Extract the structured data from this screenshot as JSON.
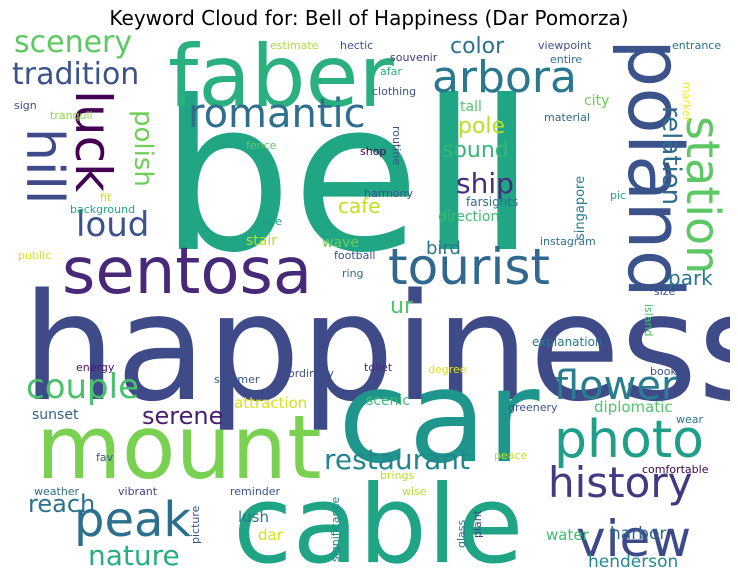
{
  "title": "Keyword Cloud for: Bell of Happiness (Dar Pomorza)",
  "words": [
    {
      "text": "bell",
      "color": "#21a685"
    },
    {
      "text": "happiness",
      "color": "#3f4a89"
    },
    {
      "text": "car",
      "color": "#1f968b"
    },
    {
      "text": "cable",
      "color": "#20a486"
    },
    {
      "text": "mount",
      "color": "#7ad151"
    },
    {
      "text": "faber",
      "color": "#2ab07f"
    },
    {
      "text": "poland",
      "color": "#3b528b"
    },
    {
      "text": "sentosa",
      "color": "#482878"
    },
    {
      "text": "tourist",
      "color": "#31688e"
    },
    {
      "text": "arbora",
      "color": "#2a788e"
    },
    {
      "text": "romantic",
      "color": "#2e6f8e"
    },
    {
      "text": "luck",
      "color": "#440154"
    },
    {
      "text": "hill",
      "color": "#3e4a89"
    },
    {
      "text": "station",
      "color": "#5cc863"
    },
    {
      "text": "photo",
      "color": "#1f9e89"
    },
    {
      "text": "view",
      "color": "#3e4989"
    },
    {
      "text": "peak",
      "color": "#2d708e"
    },
    {
      "text": "history",
      "color": "#443a83"
    },
    {
      "text": "flower",
      "color": "#287d8e"
    },
    {
      "text": "couple",
      "color": "#4ac16d"
    },
    {
      "text": "restaurant",
      "color": "#25858e"
    },
    {
      "text": "loud",
      "color": "#3b528b"
    },
    {
      "text": "scenery",
      "color": "#5ec962"
    },
    {
      "text": "tradition",
      "color": "#3b528b"
    },
    {
      "text": "nature",
      "color": "#29af7f"
    },
    {
      "text": "reach",
      "color": "#2c728e"
    },
    {
      "text": "ship",
      "color": "#472d7b"
    },
    {
      "text": "polish",
      "color": "#6ece58"
    },
    {
      "text": "relation",
      "color": "#2f6b8e"
    },
    {
      "text": "serene",
      "color": "#481f70"
    },
    {
      "text": "color",
      "color": "#2c728e"
    },
    {
      "text": "sound",
      "color": "#35b779"
    },
    {
      "text": "pole",
      "color": "#bddf26"
    },
    {
      "text": "cafe",
      "color": "#c2df23"
    },
    {
      "text": "bird",
      "color": "#2a788e"
    },
    {
      "text": "park",
      "color": "#2a768e"
    },
    {
      "text": "ur",
      "color": "#50c46a"
    },
    {
      "text": "henderson",
      "color": "#23898e"
    },
    {
      "text": "harbor",
      "color": "#31678e"
    },
    {
      "text": "diplomatic",
      "color": "#50c46a"
    },
    {
      "text": "water",
      "color": "#3fbc73"
    },
    {
      "text": "lush",
      "color": "#2a768e"
    },
    {
      "text": "dar",
      "color": "#d2e21b"
    },
    {
      "text": "scenic",
      "color": "#3fbc73"
    },
    {
      "text": "attraction",
      "color": "#d8e219"
    },
    {
      "text": "sunset",
      "color": "#33638d"
    },
    {
      "text": "direction",
      "color": "#3dbc74"
    },
    {
      "text": "city",
      "color": "#6ccd5a"
    },
    {
      "text": "tall",
      "color": "#56c667"
    },
    {
      "text": "wave",
      "color": "#6ccd5a"
    },
    {
      "text": "stair",
      "color": "#b5de2b"
    },
    {
      "text": "singapore",
      "color": "#287c8e"
    },
    {
      "text": "farsights",
      "color": "#2f6c8e"
    },
    {
      "text": "harmony",
      "color": "#3b528b"
    },
    {
      "text": "shop",
      "color": "#440154"
    },
    {
      "text": "routine",
      "color": "#3b528b"
    },
    {
      "text": "fence",
      "color": "#5dc863"
    },
    {
      "text": "clothing",
      "color": "#3b528b"
    },
    {
      "text": "afar",
      "color": "#29af7f"
    },
    {
      "text": "souvenir",
      "color": "#453781"
    },
    {
      "text": "hectic",
      "color": "#3b528b"
    },
    {
      "text": "estimate",
      "color": "#aadc32"
    },
    {
      "text": "viewpoint",
      "color": "#3b528b"
    },
    {
      "text": "entire",
      "color": "#2c728e"
    },
    {
      "text": "entrance",
      "color": "#2e6e8e"
    },
    {
      "text": "marker",
      "color": "#fde725"
    },
    {
      "text": "material",
      "color": "#31688e"
    },
    {
      "text": "pic",
      "color": "#20a386"
    },
    {
      "text": "instagram",
      "color": "#2d718e"
    },
    {
      "text": "size",
      "color": "#3e4989"
    },
    {
      "text": "island",
      "color": "#4ac16d"
    },
    {
      "text": "explanation",
      "color": "#2a788e"
    },
    {
      "text": "book",
      "color": "#3b528b"
    },
    {
      "text": "wear",
      "color": "#2c728e"
    },
    {
      "text": "comfortable",
      "color": "#440154"
    },
    {
      "text": "greenery",
      "color": "#3b528b"
    },
    {
      "text": "degree",
      "color": "#dde318"
    },
    {
      "text": "toilet",
      "color": "#472c7a"
    },
    {
      "text": "ordinary",
      "color": "#3b528b"
    },
    {
      "text": "summer",
      "color": "#3b528b"
    },
    {
      "text": "energy",
      "color": "#481467"
    },
    {
      "text": "football",
      "color": "#3b528b"
    },
    {
      "text": "ring",
      "color": "#2e6e8e"
    },
    {
      "text": "eye",
      "color": "#1fa188"
    },
    {
      "text": "background",
      "color": "#20a486"
    },
    {
      "text": "fit",
      "color": "#c8e020"
    },
    {
      "text": "tranquil",
      "color": "#8fd744"
    },
    {
      "text": "sign",
      "color": "#3b528b"
    },
    {
      "text": "public",
      "color": "#dde318"
    },
    {
      "text": "fav",
      "color": "#3b528b"
    },
    {
      "text": "weather",
      "color": "#2f6c8e"
    },
    {
      "text": "vibrant",
      "color": "#433e85"
    },
    {
      "text": "reminder",
      "color": "#3b528b"
    },
    {
      "text": "picture",
      "color": "#3b528b"
    },
    {
      "text": "significance",
      "color": "#26828e"
    },
    {
      "text": "brings",
      "color": "#b8de29"
    },
    {
      "text": "wise",
      "color": "#b5de2b"
    },
    {
      "text": "glass",
      "color": "#2a788e"
    },
    {
      "text": "plant",
      "color": "#3e4989"
    },
    {
      "text": "peace",
      "color": "#c8e020"
    }
  ]
}
